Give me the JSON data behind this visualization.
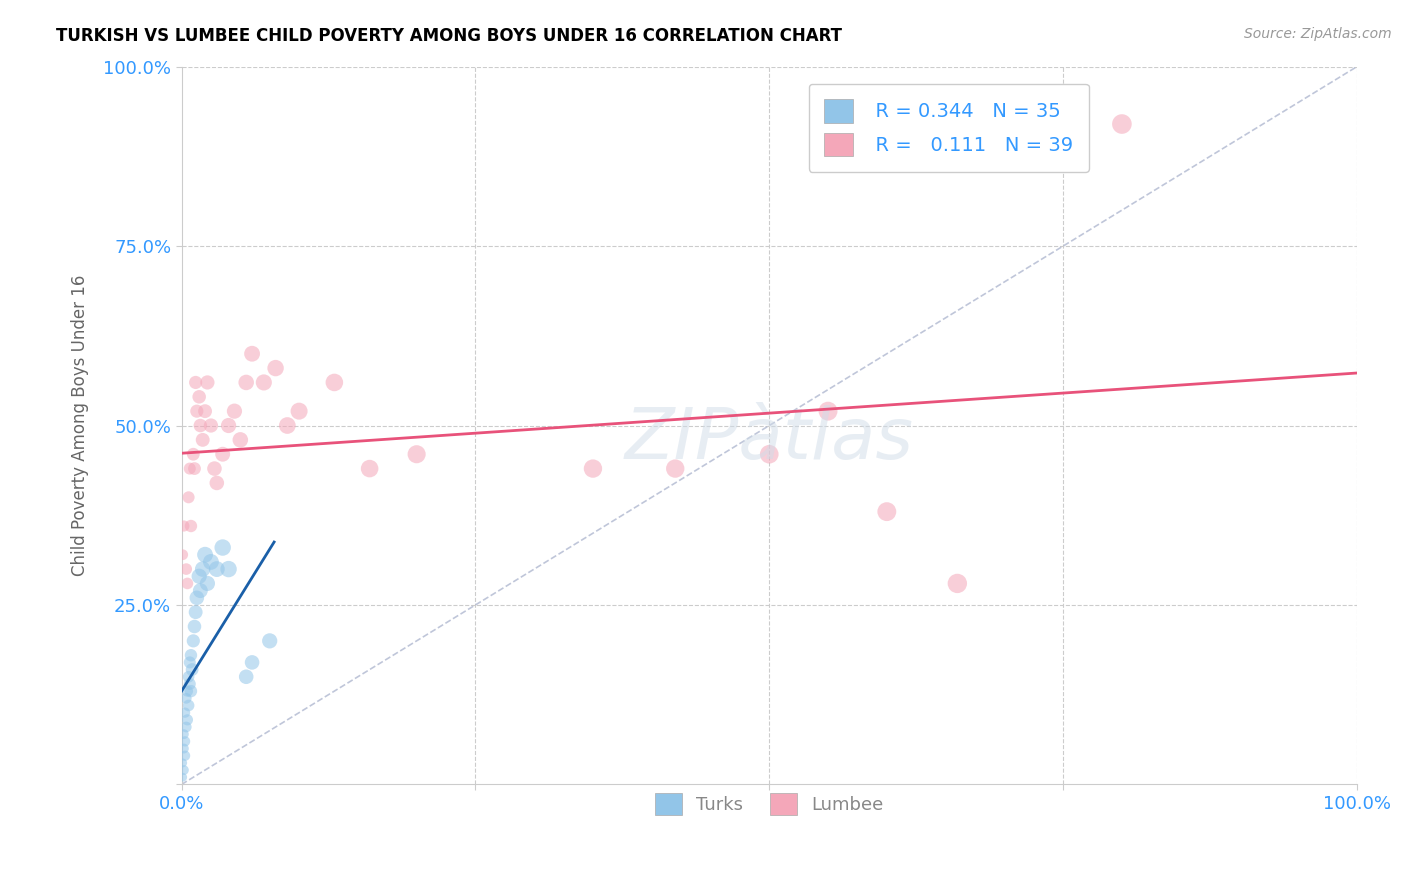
{
  "title": "TURKISH VS LUMBEE CHILD POVERTY AMONG BOYS UNDER 16 CORRELATION CHART",
  "source": "Source: ZipAtlas.com",
  "ylabel": "Child Poverty Among Boys Under 16",
  "xlim": [
    0,
    1
  ],
  "ylim": [
    0,
    1
  ],
  "turks_R": "0.344",
  "turks_N": "35",
  "lumbee_R": "0.111",
  "lumbee_N": "39",
  "turks_color": "#92c5e8",
  "lumbee_color": "#f4a7b9",
  "turks_trend_color": "#1a5fa8",
  "lumbee_trend_color": "#e8527a",
  "diagonal_color": "#b0b8d0",
  "turks_x": [
    0.001,
    0.001,
    0.002,
    0.002,
    0.002,
    0.003,
    0.003,
    0.003,
    0.004,
    0.004,
    0.005,
    0.005,
    0.006,
    0.006,
    0.007,
    0.007,
    0.008,
    0.008,
    0.009,
    0.01,
    0.011,
    0.012,
    0.013,
    0.015,
    0.016,
    0.018,
    0.02,
    0.022,
    0.025,
    0.03,
    0.035,
    0.04,
    0.055,
    0.06,
    0.075
  ],
  "turks_y": [
    0.01,
    0.03,
    0.02,
    0.05,
    0.07,
    0.04,
    0.06,
    0.1,
    0.08,
    0.12,
    0.09,
    0.13,
    0.11,
    0.15,
    0.14,
    0.17,
    0.13,
    0.18,
    0.16,
    0.2,
    0.22,
    0.24,
    0.26,
    0.29,
    0.27,
    0.3,
    0.32,
    0.28,
    0.31,
    0.3,
    0.33,
    0.3,
    0.15,
    0.17,
    0.2
  ],
  "lumbee_x": [
    0.001,
    0.002,
    0.004,
    0.005,
    0.006,
    0.007,
    0.008,
    0.01,
    0.011,
    0.012,
    0.013,
    0.015,
    0.016,
    0.018,
    0.02,
    0.022,
    0.025,
    0.028,
    0.03,
    0.035,
    0.04,
    0.045,
    0.05,
    0.055,
    0.06,
    0.07,
    0.08,
    0.09,
    0.1,
    0.13,
    0.16,
    0.2,
    0.35,
    0.42,
    0.5,
    0.55,
    0.6,
    0.66,
    0.8
  ],
  "lumbee_y": [
    0.32,
    0.36,
    0.3,
    0.28,
    0.4,
    0.44,
    0.36,
    0.46,
    0.44,
    0.56,
    0.52,
    0.54,
    0.5,
    0.48,
    0.52,
    0.56,
    0.5,
    0.44,
    0.42,
    0.46,
    0.5,
    0.52,
    0.48,
    0.56,
    0.6,
    0.56,
    0.58,
    0.5,
    0.52,
    0.56,
    0.44,
    0.46,
    0.44,
    0.44,
    0.46,
    0.52,
    0.38,
    0.28,
    0.92
  ],
  "turks_sizes": [
    40,
    40,
    50,
    50,
    50,
    55,
    55,
    55,
    60,
    60,
    65,
    65,
    70,
    70,
    75,
    75,
    80,
    80,
    85,
    90,
    95,
    100,
    110,
    120,
    115,
    125,
    130,
    120,
    130,
    130,
    140,
    140,
    110,
    110,
    120
  ],
  "lumbee_sizes": [
    60,
    65,
    70,
    70,
    75,
    75,
    80,
    85,
    85,
    90,
    90,
    95,
    95,
    100,
    100,
    105,
    105,
    110,
    110,
    115,
    120,
    120,
    125,
    125,
    130,
    135,
    140,
    145,
    150,
    160,
    160,
    170,
    175,
    175,
    180,
    185,
    185,
    195,
    200
  ]
}
